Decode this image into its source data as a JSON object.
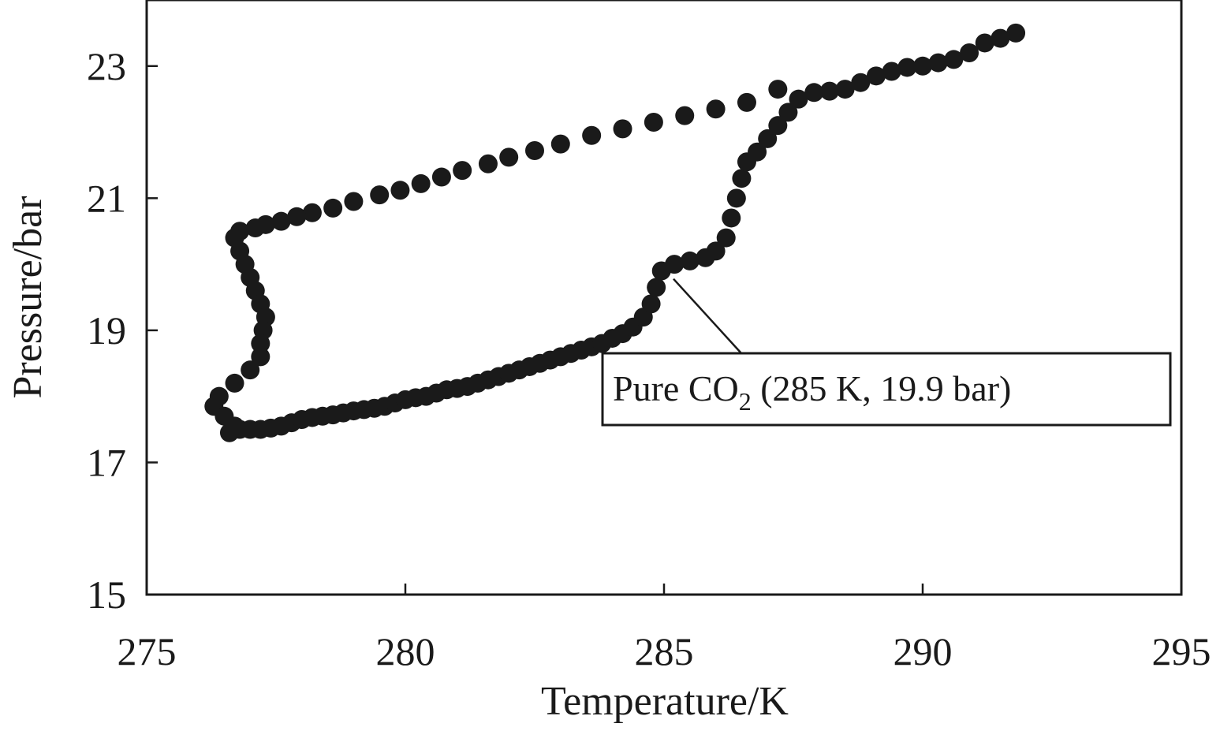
{
  "colors": {
    "ink": "#1a1a1a",
    "background": "#ffffff"
  },
  "chart_data": {
    "type": "scatter",
    "title": "",
    "xlabel": "Temperature/K",
    "ylabel": "Pressure/bar",
    "xlim": [
      275,
      295
    ],
    "ylim": [
      15,
      24
    ],
    "xticks": [
      275,
      280,
      285,
      290,
      295
    ],
    "yticks": [
      15,
      17,
      19,
      21,
      23
    ],
    "grid": false,
    "legend": "none",
    "series": [
      {
        "name": "Pure CO2",
        "points": [
          [
            276.6,
            17.45
          ],
          [
            276.8,
            17.5
          ],
          [
            277.0,
            17.5
          ],
          [
            277.2,
            17.5
          ],
          [
            277.4,
            17.52
          ],
          [
            277.6,
            17.55
          ],
          [
            277.8,
            17.6
          ],
          [
            278.0,
            17.65
          ],
          [
            278.2,
            17.68
          ],
          [
            278.4,
            17.7
          ],
          [
            278.6,
            17.72
          ],
          [
            278.8,
            17.75
          ],
          [
            279.0,
            17.78
          ],
          [
            279.2,
            17.8
          ],
          [
            279.4,
            17.82
          ],
          [
            279.6,
            17.85
          ],
          [
            279.8,
            17.9
          ],
          [
            280.0,
            17.95
          ],
          [
            280.2,
            17.98
          ],
          [
            280.4,
            18.0
          ],
          [
            280.6,
            18.05
          ],
          [
            280.8,
            18.1
          ],
          [
            281.0,
            18.12
          ],
          [
            281.2,
            18.15
          ],
          [
            281.4,
            18.2
          ],
          [
            281.6,
            18.25
          ],
          [
            281.8,
            18.3
          ],
          [
            282.0,
            18.35
          ],
          [
            282.2,
            18.4
          ],
          [
            282.4,
            18.45
          ],
          [
            282.6,
            18.5
          ],
          [
            282.8,
            18.55
          ],
          [
            283.0,
            18.6
          ],
          [
            283.2,
            18.65
          ],
          [
            283.4,
            18.7
          ],
          [
            283.6,
            18.75
          ],
          [
            283.8,
            18.8
          ],
          [
            284.0,
            18.88
          ],
          [
            284.2,
            18.95
          ],
          [
            284.4,
            19.05
          ],
          [
            284.6,
            19.2
          ],
          [
            284.75,
            19.4
          ],
          [
            284.85,
            19.65
          ],
          [
            284.95,
            19.9
          ],
          [
            285.2,
            20.0
          ],
          [
            285.5,
            20.05
          ],
          [
            285.8,
            20.1
          ],
          [
            286.0,
            20.2
          ],
          [
            286.2,
            20.4
          ],
          [
            286.3,
            20.7
          ],
          [
            286.4,
            21.0
          ],
          [
            286.5,
            21.3
          ],
          [
            286.6,
            21.55
          ],
          [
            286.8,
            21.7
          ],
          [
            287.0,
            21.9
          ],
          [
            287.2,
            22.1
          ],
          [
            287.4,
            22.3
          ],
          [
            287.6,
            22.5
          ],
          [
            287.9,
            22.6
          ],
          [
            288.2,
            22.62
          ],
          [
            288.5,
            22.65
          ],
          [
            288.8,
            22.75
          ],
          [
            289.1,
            22.85
          ],
          [
            289.4,
            22.92
          ],
          [
            289.7,
            22.98
          ],
          [
            290.0,
            23.0
          ],
          [
            290.3,
            23.05
          ],
          [
            290.6,
            23.1
          ],
          [
            290.9,
            23.2
          ],
          [
            291.2,
            23.35
          ],
          [
            291.5,
            23.42
          ],
          [
            291.8,
            23.5
          ],
          [
            287.2,
            22.65
          ],
          [
            286.6,
            22.45
          ],
          [
            286.0,
            22.35
          ],
          [
            285.4,
            22.25
          ],
          [
            284.8,
            22.15
          ],
          [
            284.2,
            22.05
          ],
          [
            283.6,
            21.95
          ],
          [
            283.0,
            21.82
          ],
          [
            282.5,
            21.72
          ],
          [
            282.0,
            21.62
          ],
          [
            281.6,
            21.52
          ],
          [
            281.1,
            21.42
          ],
          [
            280.7,
            21.32
          ],
          [
            280.3,
            21.22
          ],
          [
            279.9,
            21.12
          ],
          [
            279.5,
            21.05
          ],
          [
            279.0,
            20.95
          ],
          [
            278.6,
            20.85
          ],
          [
            278.2,
            20.78
          ],
          [
            277.9,
            20.72
          ],
          [
            277.6,
            20.65
          ],
          [
            277.3,
            20.6
          ],
          [
            277.1,
            20.55
          ],
          [
            276.8,
            20.5
          ],
          [
            276.7,
            20.4
          ],
          [
            276.8,
            20.2
          ],
          [
            276.9,
            20.0
          ],
          [
            277.0,
            19.8
          ],
          [
            277.1,
            19.6
          ],
          [
            277.2,
            19.4
          ],
          [
            277.3,
            19.2
          ],
          [
            277.25,
            19.0
          ],
          [
            277.2,
            18.8
          ],
          [
            277.2,
            18.6
          ],
          [
            277.0,
            18.4
          ],
          [
            276.7,
            18.2
          ],
          [
            276.4,
            18.0
          ],
          [
            276.3,
            17.85
          ],
          [
            276.5,
            17.7
          ],
          [
            276.7,
            17.55
          ]
        ]
      }
    ],
    "annotation": {
      "text": "Pure CO2 (285 K, 19.9 bar)",
      "prefix": "Pure CO",
      "subscript": "2",
      "suffix": " (285 K, 19.9 bar)",
      "target": [
        285.0,
        19.85
      ]
    }
  }
}
